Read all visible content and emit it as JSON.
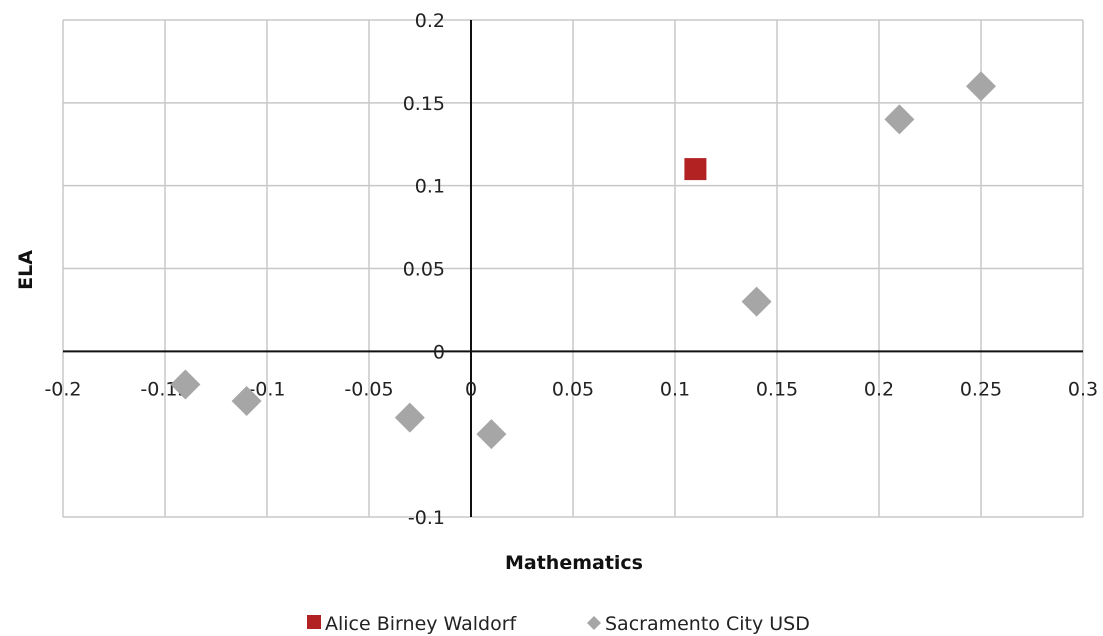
{
  "chart_data": {
    "type": "scatter",
    "title": "",
    "xlabel": "Mathematics",
    "ylabel": "ELA",
    "xlim": [
      -0.2,
      0.3
    ],
    "ylim": [
      -0.1,
      0.2
    ],
    "x_ticks": [
      "-0.2",
      "-0.15",
      "-0.1",
      "-0.05",
      "0",
      "0.05",
      "0.1",
      "0.15",
      "0.2",
      "0.25",
      "0.3"
    ],
    "y_ticks": [
      "-0.1",
      "0",
      "0.05",
      "0.1",
      "0.15",
      "0.2"
    ],
    "grid": true,
    "legend_position": "bottom",
    "series": [
      {
        "name": "Alice Birney Waldorf",
        "marker": "square",
        "color": "#b22222",
        "points": [
          {
            "x": 0.11,
            "y": 0.11
          }
        ]
      },
      {
        "name": "Sacramento City USD",
        "marker": "diamond",
        "color": "#a6a6a6",
        "points": [
          {
            "x": -0.14,
            "y": -0.02
          },
          {
            "x": -0.11,
            "y": -0.03
          },
          {
            "x": -0.03,
            "y": -0.04
          },
          {
            "x": 0.01,
            "y": -0.05
          },
          {
            "x": 0.14,
            "y": 0.03
          },
          {
            "x": 0.21,
            "y": 0.14
          },
          {
            "x": 0.25,
            "y": 0.16
          }
        ]
      }
    ]
  }
}
